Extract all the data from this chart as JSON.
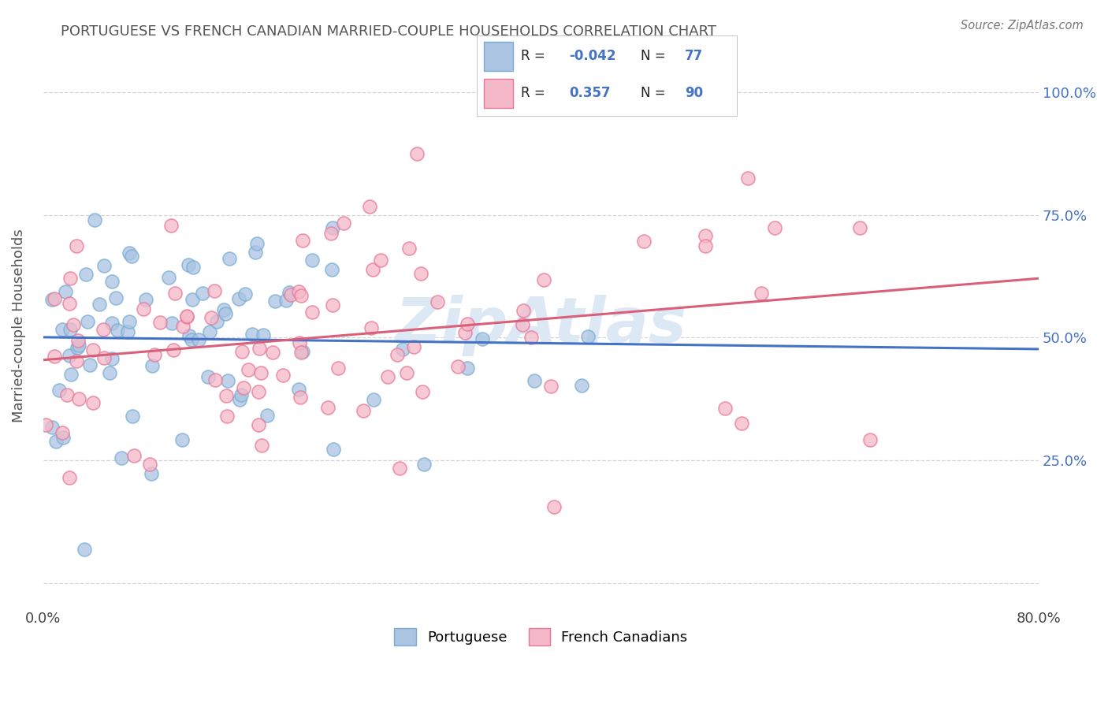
{
  "title": "PORTUGUESE VS FRENCH CANADIAN MARRIED-COUPLE HOUSEHOLDS CORRELATION CHART",
  "source": "Source: ZipAtlas.com",
  "ylabel": "Married-couple Households",
  "portuguese_R": -0.042,
  "portuguese_N": 77,
  "french_canadian_R": 0.357,
  "french_canadian_N": 90,
  "portuguese_color": "#aac4e2",
  "french_canadian_color": "#f5b8c8",
  "portuguese_edge_color": "#7aadd4",
  "french_canadian_edge_color": "#e87898",
  "trend_line_blue": "#4472c4",
  "trend_line_pink": "#d9607a",
  "background_color": "#ffffff",
  "grid_color": "#cccccc",
  "title_color": "#555555",
  "right_axis_color": "#4472c4",
  "watermark_color": "#dde8f5",
  "xlim": [
    0.0,
    0.8
  ],
  "ylim": [
    -0.05,
    1.1
  ],
  "ytick_positions": [
    0.0,
    0.25,
    0.5,
    0.75,
    1.0
  ],
  "ytick_labels_right": [
    "",
    "25.0%",
    "50.0%",
    "75.0%",
    "100.0%"
  ],
  "xtick_positions": [
    0.0,
    0.16,
    0.32,
    0.48,
    0.64,
    0.8
  ],
  "xtick_labels": [
    "0.0%",
    "",
    "",
    "",
    "",
    "80.0%"
  ],
  "legend_R1": "-0.042",
  "legend_N1": "77",
  "legend_R2": "0.357",
  "legend_N2": "90",
  "legend_label1": "Portuguese",
  "legend_label2": "French Canadians"
}
